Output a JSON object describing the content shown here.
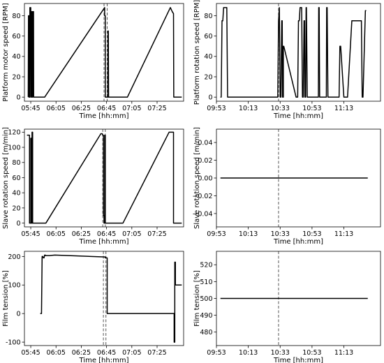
{
  "chart_data": [
    {
      "type": "line",
      "panel": "top-left",
      "xlabel": "Time [hh:mm]",
      "ylabel": "Platform motor speed [RPM]",
      "x_unit": "minutes since 00:00",
      "xlim": [
        340,
        466
      ],
      "ylim": [
        -4,
        92
      ],
      "xticks": [
        {
          "value": 345,
          "label": "05:45"
        },
        {
          "value": 365,
          "label": "06:05"
        },
        {
          "value": 385,
          "label": "06:25"
        },
        {
          "value": 405,
          "label": "06:45"
        },
        {
          "value": 425,
          "label": "07:05"
        },
        {
          "value": 445,
          "label": "07:25"
        }
      ],
      "yticks": [
        0,
        20,
        40,
        60,
        80
      ],
      "vlines": [
        403,
        405.5
      ],
      "series": [
        {
          "x": [
            342,
            343,
            343.2,
            343.5,
            343.6,
            344.2,
            344.3,
            345,
            345.1,
            345.4,
            345.5,
            346,
            346.1,
            346.5,
            346.6,
            347.2,
            347.3,
            347.6,
            349,
            349.5,
            356,
            403.5,
            403.5,
            404,
            404,
            405,
            405,
            406,
            406.2,
            406.4,
            406.6,
            406.8,
            421.5,
            455.5,
            457,
            458,
            458.2,
            464.5
          ],
          "y": [
            null,
            0,
            80,
            80,
            0,
            0,
            88,
            88,
            0,
            0,
            84,
            84,
            0,
            0,
            84,
            84,
            0,
            0,
            0,
            0,
            0,
            88,
            80,
            80,
            0,
            0,
            0,
            0,
            65,
            65,
            0,
            0,
            0,
            88,
            84,
            82,
            0,
            0
          ]
        }
      ]
    },
    {
      "type": "line",
      "panel": "top-right",
      "xlabel": "Time [hh:mm]",
      "ylabel": "Platform rotation speed [RPM]",
      "x_unit": "minutes since 00:00",
      "xlim": [
        593,
        696
      ],
      "ylim": [
        -4,
        92
      ],
      "xticks": [
        {
          "value": 593,
          "label": "09:53"
        },
        {
          "value": 613,
          "label": "10:13"
        },
        {
          "value": 633,
          "label": "10:33"
        },
        {
          "value": 653,
          "label": "10:53"
        },
        {
          "value": 673,
          "label": "11:13"
        }
      ],
      "yticks": [
        0,
        20,
        40,
        60,
        80
      ],
      "vlines": [
        632
      ],
      "series": [
        {
          "x": [
            595.5,
            596,
            596.5,
            597,
            597.5,
            598,
            598.2,
            599.5,
            600,
            600.2,
            600.5,
            631.5,
            632,
            632.5,
            632.5,
            633,
            633.5,
            634,
            634.3,
            634.5,
            635,
            635,
            635.3,
            643,
            643.5,
            644,
            644.5,
            645,
            645.5,
            646.5,
            647,
            647.5,
            648,
            648.3,
            648.5,
            649,
            649.3,
            649.5,
            650,
            650,
            650.5,
            657,
            657.2,
            657.5,
            657.8,
            658,
            662,
            662.2,
            662.5,
            663,
            663.5,
            664,
            664.2,
            669.5,
            670,
            670.5,
            671,
            673,
            674,
            675,
            675.3,
            678,
            684,
            684.5,
            685,
            686.5,
            687
          ],
          "y": [
            0,
            0,
            75,
            75,
            88,
            88,
            88,
            88,
            0,
            0,
            0,
            0,
            75,
            88,
            88,
            0,
            0,
            75,
            75,
            0,
            0,
            50,
            50,
            0,
            0,
            0,
            75,
            75,
            88,
            88,
            0,
            0,
            75,
            75,
            0,
            0,
            88,
            88,
            0,
            0,
            0,
            0,
            88,
            88,
            0,
            0,
            0,
            88,
            88,
            0,
            0,
            0,
            0,
            0,
            0,
            50,
            50,
            0,
            0,
            0,
            0,
            75,
            75,
            0,
            0,
            85,
            85
          ]
        }
      ]
    },
    {
      "type": "line",
      "panel": "middle-left",
      "xlabel": "Time [hh:mm]",
      "ylabel": "Slave rotation speed [m/min]",
      "x_unit": "minutes since 00:00",
      "xlim": [
        340,
        466
      ],
      "ylim": [
        -5,
        124
      ],
      "xticks": [
        {
          "value": 345,
          "label": "05:45"
        },
        {
          "value": 365,
          "label": "06:05"
        },
        {
          "value": 385,
          "label": "06:25"
        },
        {
          "value": 405,
          "label": "06:45"
        },
        {
          "value": 425,
          "label": "07:05"
        },
        {
          "value": 445,
          "label": "07:25"
        }
      ],
      "yticks": [
        0,
        20,
        40,
        60,
        80,
        100,
        120
      ],
      "vlines": [
        402,
        404
      ],
      "series": [
        {
          "x": [
            342,
            344,
            344,
            345,
            345,
            345.5,
            345.5,
            346,
            346,
            346.5,
            346.5,
            347,
            347.5,
            349,
            357,
            400.5,
            401.5,
            402,
            402.5,
            402.5,
            403,
            403,
            403.5,
            403.5,
            404,
            404,
            404.5,
            404.5,
            405,
            406.5,
            407.5,
            418,
            454.5,
            458,
            458,
            464.5
          ],
          "y": [
            116,
            116,
            0,
            0,
            112,
            112,
            0,
            0,
            120,
            120,
            0,
            0,
            0,
            0,
            0,
            118,
            118,
            116,
            116,
            10,
            10,
            0,
            0,
            116,
            116,
            0,
            0,
            0,
            0,
            0,
            0,
            0,
            120,
            120,
            0,
            0
          ]
        }
      ]
    },
    {
      "type": "line",
      "panel": "middle-right",
      "xlabel": "Time [hh:mm]",
      "ylabel": "Slave rotation speed [m/min]",
      "x_unit": "minutes since 00:00",
      "xlim": [
        593,
        696
      ],
      "ylim": [
        -0.055,
        0.055
      ],
      "xticks": [
        {
          "value": 593,
          "label": "09:53"
        },
        {
          "value": 613,
          "label": "10:13"
        },
        {
          "value": 633,
          "label": "10:33"
        },
        {
          "value": 653,
          "label": "10:53"
        },
        {
          "value": 673,
          "label": "11:13"
        }
      ],
      "yticks": [
        {
          "value": -0.04,
          "label": "−0.04"
        },
        {
          "value": -0.02,
          "label": "−0.02"
        },
        {
          "value": 0,
          "label": "0.00"
        },
        {
          "value": 0.02,
          "label": "0.02"
        },
        {
          "value": 0.04,
          "label": "0.04"
        }
      ],
      "vlines": [
        632
      ],
      "series": [
        {
          "x": [
            595.5,
            688
          ],
          "y": [
            0,
            0
          ]
        }
      ]
    },
    {
      "type": "line",
      "panel": "bottom-left",
      "xlabel": "Time [hh:mm]",
      "ylabel": "Film tension [%]",
      "x_unit": "minutes since 00:00",
      "xlim": [
        340,
        466
      ],
      "ylim": [
        -112,
        218
      ],
      "xticks": [
        {
          "value": 345,
          "label": "05:45"
        },
        {
          "value": 365,
          "label": "06:05"
        },
        {
          "value": 385,
          "label": "06:25"
        },
        {
          "value": 405,
          "label": "06:45"
        },
        {
          "value": 425,
          "label": "07:05"
        },
        {
          "value": 445,
          "label": "07:25"
        }
      ],
      "yticks": [
        -100,
        0,
        100,
        200
      ],
      "vlines": [
        402.5,
        404.5
      ],
      "series": [
        {
          "x": [
            352.5,
            353.5,
            354,
            354.5,
            355,
            355.5,
            356,
            356.5,
            356.5,
            360,
            364,
            404,
            404,
            405.5,
            405.5,
            458.5,
            458.5,
            459,
            459,
            459.5,
            459.5,
            460,
            460,
            464.5
          ],
          "y": [
            0,
            0,
            200,
            200,
            195,
            195,
            205,
            205,
            203,
            203,
            205,
            198,
            195,
            195,
            0,
            0,
            -100,
            -100,
            180,
            180,
            100,
            100,
            100,
            100
          ]
        }
      ]
    },
    {
      "type": "line",
      "panel": "bottom-right",
      "xlabel": "Time [hh:mm]",
      "ylabel": "Film tension [%]",
      "x_unit": "minutes since 00:00",
      "xlim": [
        593,
        696
      ],
      "ylim": [
        472,
        528
      ],
      "xticks": [
        {
          "value": 593,
          "label": "09:53"
        },
        {
          "value": 613,
          "label": "10:13"
        },
        {
          "value": 633,
          "label": "10:33"
        },
        {
          "value": 653,
          "label": "10:53"
        },
        {
          "value": 673,
          "label": "11:13"
        }
      ],
      "yticks": [
        480,
        490,
        500,
        510,
        520
      ],
      "vlines": [
        632
      ],
      "series": [
        {
          "x": [
            595.5,
            688
          ],
          "y": [
            500,
            500
          ]
        }
      ]
    }
  ]
}
